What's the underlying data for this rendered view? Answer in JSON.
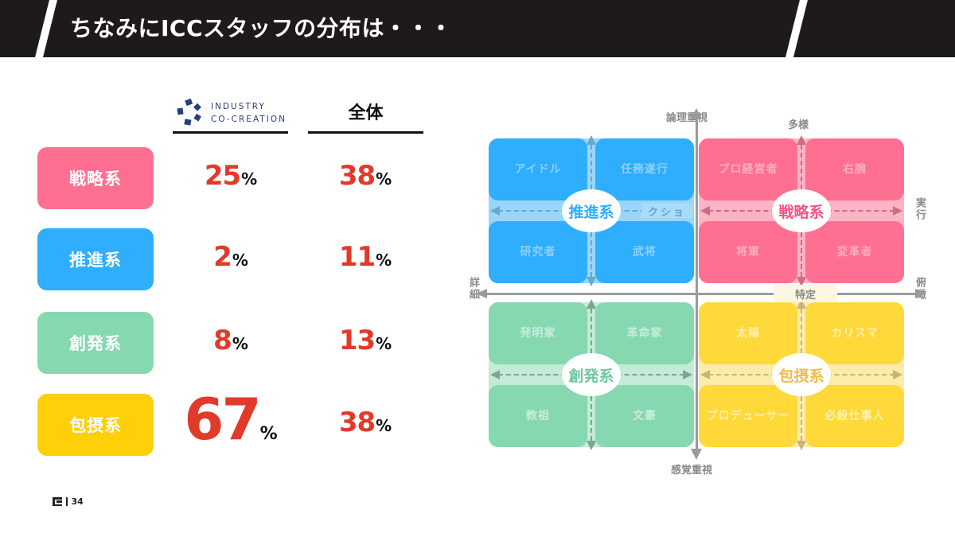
{
  "header": {
    "title": "ちなみにICCスタッフの分布は・・・"
  },
  "table": {
    "columns": [
      {
        "id": "icc",
        "logo_lines": [
          "INDUSTRY",
          "CO-CREATION"
        ]
      },
      {
        "id": "all",
        "label": "全体"
      }
    ],
    "rows": [
      {
        "category": "戦略系",
        "color": "#ff6f91",
        "icc": "25",
        "all": "38",
        "unit": "%"
      },
      {
        "category": "推進系",
        "color": "#2eaefc",
        "icc": "2",
        "all": "11",
        "unit": "%"
      },
      {
        "category": "創発系",
        "color": "#86d8b0",
        "icc": "8",
        "all": "13",
        "unit": "%"
      },
      {
        "category": "包摂系",
        "color": "#ffcf0a",
        "icc": "67",
        "all": "38",
        "unit": "%"
      }
    ],
    "highlight_color": "#e23a2a"
  },
  "diagram": {
    "axes": {
      "top": "論理重視",
      "bottom": "感覚重視",
      "left": "詳細",
      "right": "俯瞰",
      "sub_top": "多様",
      "sub_right": "実行",
      "sub_center": "特定",
      "sub_left_partial": "クショ"
    },
    "quadrants": [
      {
        "id": "suishin",
        "name": "推進系",
        "color": "#2eaefc",
        "tint": "#9ad6fb",
        "text_color": "#8fd0fb",
        "hub_color": "#2eaefc",
        "cells": [
          "アイドル",
          "任務遂行",
          "研究者",
          "武将"
        ]
      },
      {
        "id": "senryaku",
        "name": "戦略系",
        "color": "#ff6f91",
        "tint": "#ffb3c4",
        "text_color": "#ffaec0",
        "hub_color": "#f25584",
        "cells": [
          "プロ経営者",
          "右腕",
          "将軍",
          "変革者"
        ]
      },
      {
        "id": "souhatsu",
        "name": "創発系",
        "color": "#86d8b0",
        "tint": "#c4ebd8",
        "text_color": "#c6eedb",
        "hub_color": "#6cc99c",
        "cells": [
          "発明家",
          "革命家",
          "教祖",
          "文豪"
        ]
      },
      {
        "id": "housetsu",
        "name": "包摂系",
        "color": "#ffd93a",
        "tint": "#fcecaa",
        "text_color": "#fff0b0",
        "hub_color": "#f2b94a",
        "cells": [
          "太陽",
          "カリスマ",
          "プロデューサー",
          "必殺仕事人"
        ]
      }
    ]
  },
  "footer": {
    "page_number": "34"
  }
}
